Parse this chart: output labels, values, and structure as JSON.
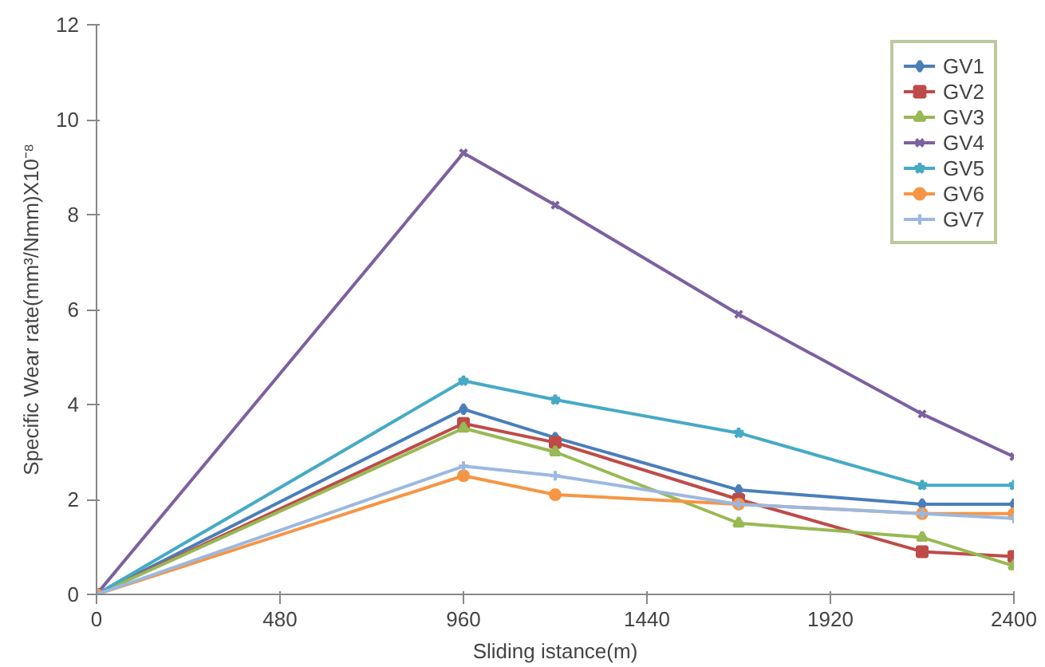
{
  "chart_data": {
    "type": "line",
    "xlabel": "Sliding istance(m)",
    "ylabel": "Specific Wear rate(mm³/Nmm)X10⁻⁸",
    "x": [
      0,
      960,
      1200,
      1680,
      2160,
      2400
    ],
    "xlim": [
      0,
      2400
    ],
    "xticks": [
      0,
      480,
      960,
      1440,
      1920,
      2400
    ],
    "ylim": [
      0,
      12
    ],
    "yticks": [
      0,
      2,
      4,
      6,
      8,
      10,
      12
    ],
    "grid": false,
    "legend": "top right",
    "line_style": "solid",
    "series": [
      {
        "name": "GV1",
        "color": "#4a7ebb",
        "marker": "diamond",
        "values": [
          0,
          3.9,
          3.3,
          2.2,
          1.9,
          1.9
        ]
      },
      {
        "name": "GV2",
        "color": "#be4b48",
        "marker": "square",
        "values": [
          0,
          3.6,
          3.2,
          2.0,
          0.9,
          0.8
        ]
      },
      {
        "name": "GV3",
        "color": "#98b954",
        "marker": "triangle",
        "values": [
          0,
          3.5,
          3.0,
          1.5,
          1.2,
          0.6
        ]
      },
      {
        "name": "GV4",
        "color": "#7d60a0",
        "marker": "x",
        "values": [
          0,
          9.3,
          8.2,
          5.9,
          3.8,
          2.9
        ]
      },
      {
        "name": "GV5",
        "color": "#46aac5",
        "marker": "star",
        "values": [
          0,
          4.5,
          4.1,
          3.4,
          2.3,
          2.3
        ]
      },
      {
        "name": "GV6",
        "color": "#f69545",
        "marker": "circle",
        "values": [
          0,
          2.5,
          2.1,
          1.9,
          1.7,
          1.7
        ]
      },
      {
        "name": "GV7",
        "color": "#9bb8e0",
        "marker": "cross",
        "values": [
          0,
          2.7,
          2.5,
          1.9,
          1.7,
          1.6
        ]
      }
    ]
  }
}
